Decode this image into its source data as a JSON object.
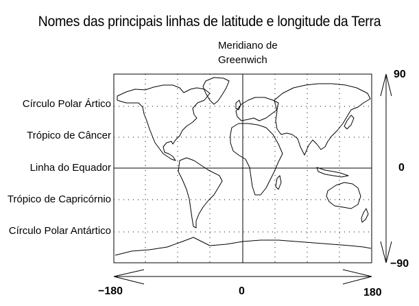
{
  "title": "Nomes das principais linhas de latitude e longitude da Terra",
  "meridian_label": {
    "line1": "Meridiano de",
    "line2": "Greenwich"
  },
  "latitude_lines": [
    {
      "name": "Círculo Polar Ártico",
      "lat": 66.5
    },
    {
      "name": "Trópico de Câncer",
      "lat": 23.5
    },
    {
      "name": "Linha do Equador",
      "lat": 0
    },
    {
      "name": "Trópico de Capricórnio",
      "lat": -23.5
    },
    {
      "name": "Círculo Polar Antártico",
      "lat": -66.5
    }
  ],
  "axes": {
    "lat_top": "90",
    "lat_mid": "0",
    "lat_bottom": "−90",
    "lon_left": "−180",
    "lon_mid": "0",
    "lon_right": "180"
  },
  "colors": {
    "lines": "#000000",
    "background": "#ffffff"
  }
}
